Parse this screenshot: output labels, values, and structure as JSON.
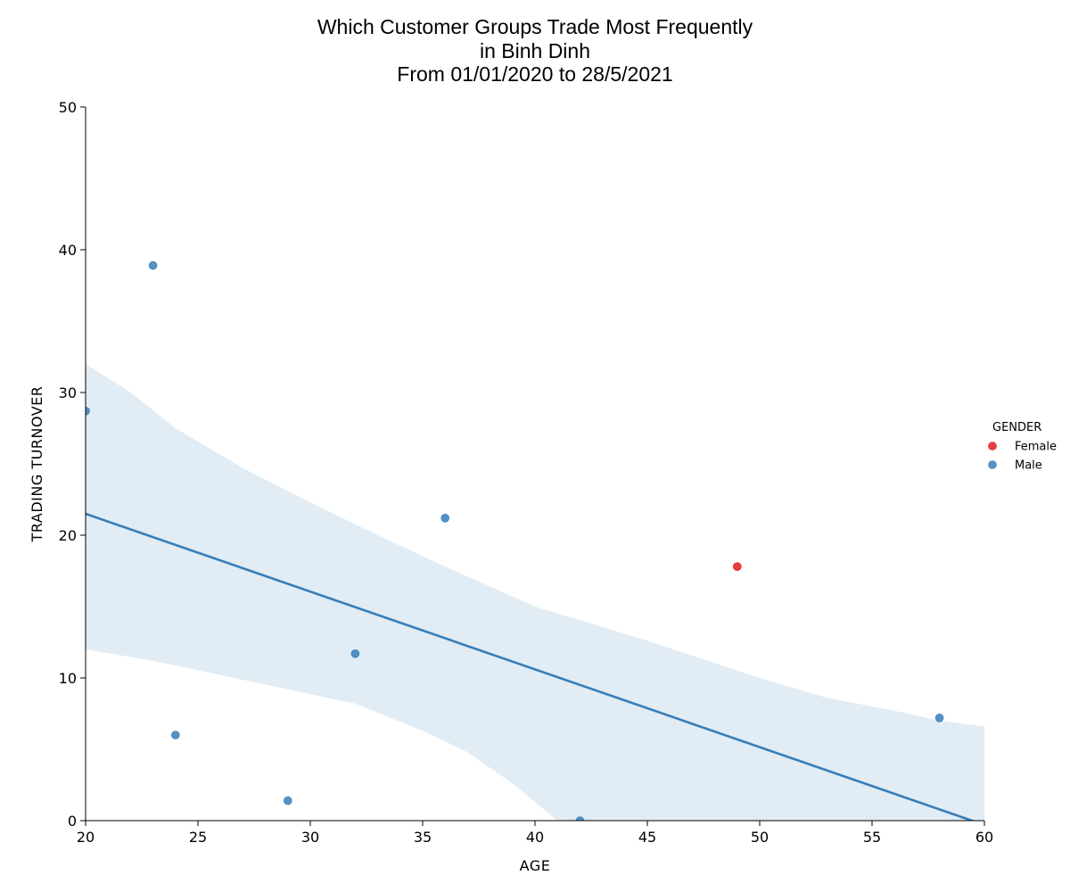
{
  "chart_data": {
    "type": "scatter",
    "title_lines": [
      "Which Customer Groups Trade Most Frequently",
      "in Binh Dinh",
      "From 01/01/2020 to 28/5/2021"
    ],
    "xlabel": "AGE",
    "ylabel": "TRADING TURNOVER",
    "xlim": [
      20,
      60
    ],
    "ylim": [
      0,
      50
    ],
    "xticks": [
      20,
      25,
      30,
      35,
      40,
      45,
      50,
      55,
      60
    ],
    "yticks": [
      0,
      10,
      20,
      30,
      40,
      50
    ],
    "grid": false,
    "legend": {
      "title": "GENDER",
      "placement": "right",
      "entries": [
        {
          "label": "Female",
          "color": "#e41a1c"
        },
        {
          "label": "Male",
          "color": "#377eb8"
        }
      ]
    },
    "series": [
      {
        "name": "Female",
        "color": "#e41a1c",
        "points": [
          {
            "x": 49,
            "y": 17.8
          }
        ]
      },
      {
        "name": "Male",
        "color": "#377eb8",
        "points": [
          {
            "x": 20,
            "y": 28.7
          },
          {
            "x": 23,
            "y": 38.9
          },
          {
            "x": 24,
            "y": 6.0
          },
          {
            "x": 29,
            "y": 1.4
          },
          {
            "x": 32,
            "y": 11.7
          },
          {
            "x": 36,
            "y": 21.2
          },
          {
            "x": 42,
            "y": 0.0
          },
          {
            "x": 58,
            "y": 7.2
          }
        ]
      }
    ],
    "regression": {
      "color": "#377eb8",
      "line": [
        {
          "x": 20,
          "y": 21.5
        },
        {
          "x": 60,
          "y": -0.3
        }
      ],
      "ci_upper": [
        {
          "x": 20,
          "y": 32.0
        },
        {
          "x": 22,
          "y": 30.0
        },
        {
          "x": 24,
          "y": 27.5
        },
        {
          "x": 27,
          "y": 24.7
        },
        {
          "x": 30,
          "y": 22.3
        },
        {
          "x": 33,
          "y": 20.0
        },
        {
          "x": 36,
          "y": 17.8
        },
        {
          "x": 40,
          "y": 15.0
        },
        {
          "x": 45,
          "y": 12.6
        },
        {
          "x": 50,
          "y": 10.0
        },
        {
          "x": 53,
          "y": 8.6
        },
        {
          "x": 56,
          "y": 7.7
        },
        {
          "x": 58,
          "y": 7.0
        },
        {
          "x": 60,
          "y": 6.6
        }
      ],
      "ci_lower": [
        {
          "x": 20,
          "y": 12.0
        },
        {
          "x": 23,
          "y": 11.2
        },
        {
          "x": 26,
          "y": 10.2
        },
        {
          "x": 29,
          "y": 9.2
        },
        {
          "x": 32,
          "y": 8.2
        },
        {
          "x": 35,
          "y": 6.3
        },
        {
          "x": 37,
          "y": 4.8
        },
        {
          "x": 39,
          "y": 2.6
        },
        {
          "x": 41,
          "y": 0.0
        },
        {
          "x": 42,
          "y": -1.2
        }
      ]
    }
  }
}
